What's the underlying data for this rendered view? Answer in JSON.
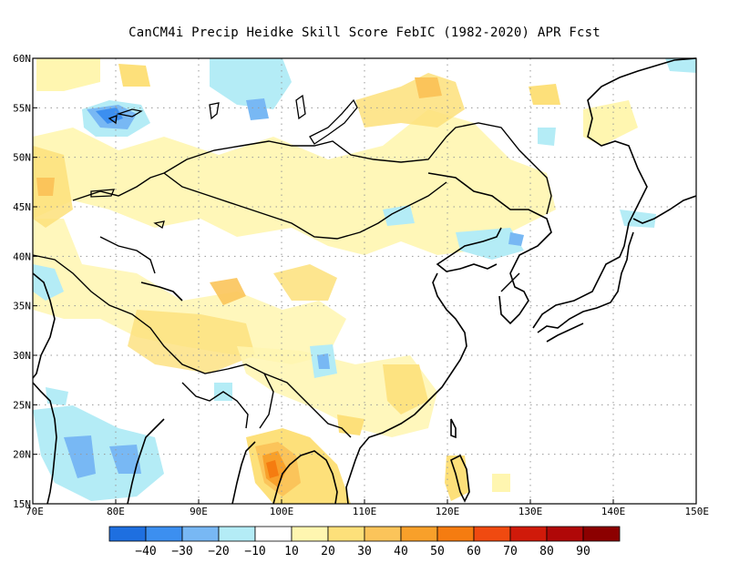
{
  "title": "CanCM4i Precip Heidke Skill Score FebIC (1982-2020) APR Fcst",
  "axes": {
    "lat_labels": [
      "60N",
      "55N",
      "50N",
      "45N",
      "40N",
      "35N",
      "30N",
      "25N",
      "20N",
      "15N"
    ],
    "lon_labels": [
      "70E",
      "80E",
      "90E",
      "100E",
      "110E",
      "120E",
      "130E",
      "140E",
      "150E"
    ],
    "lat_range": [
      15,
      60
    ],
    "lon_range": [
      70,
      150
    ]
  },
  "colorbar": {
    "labels": [
      "-40",
      "-30",
      "-20",
      "-10",
      "10",
      "20",
      "30",
      "40",
      "50",
      "60",
      "70",
      "80",
      "90"
    ],
    "colors": [
      "#1e6fe0",
      "#3c8ff0",
      "#78b8f4",
      "#b4ecf6",
      "#ffffff",
      "#fff6b0",
      "#fde07a",
      "#fbc45a",
      "#f8a02a",
      "#f57c10",
      "#f04a10",
      "#d01a0a",
      "#b00808",
      "#8c0000"
    ]
  },
  "colors": {
    "land_outline": "#000000",
    "grid": "#999999"
  }
}
